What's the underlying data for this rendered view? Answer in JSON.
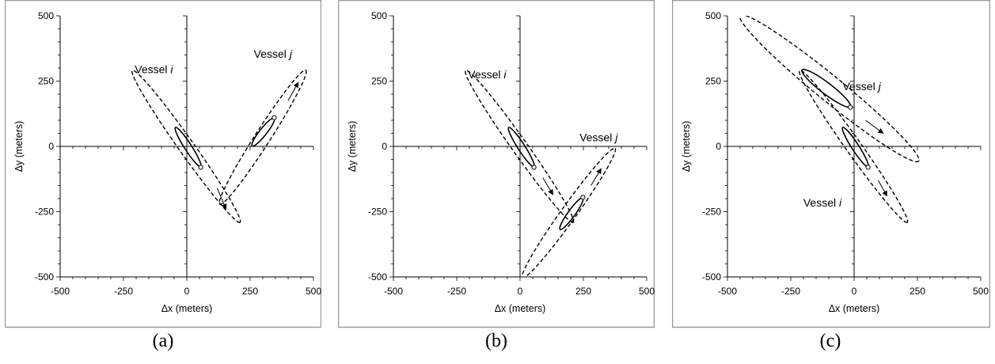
{
  "chart_data": [
    {
      "type": "scatter",
      "panel_label": "(a)",
      "xlabel": "Δx (meters)",
      "ylabel": "Δy (meters)",
      "xlim": [
        -500,
        500
      ],
      "ylim": [
        -500,
        500
      ],
      "xticks": [
        -500,
        -250,
        0,
        250,
        500
      ],
      "yticks": [
        500,
        250,
        0,
        -250,
        -500
      ],
      "grid": false,
      "vessels": [
        {
          "name": "Vessel i",
          "label_x": -130,
          "label_y": 280,
          "position": [
            55,
            -80
          ],
          "solid_ellipse": {
            "end1": [
              -45,
              75
            ],
            "end2": [
              55,
              -80
            ],
            "half_width": 14
          },
          "dashed_ellipse": {
            "end1": [
              -215,
              300
            ],
            "end2": [
              210,
              -300
            ],
            "half_width": 30
          },
          "arrow": {
            "from": [
              120,
              -160
            ],
            "to": [
              155,
              -240
            ]
          }
        },
        {
          "name": "Vessel j",
          "label_x": 340,
          "label_y": 340,
          "position": [
            345,
            110
          ],
          "solid_ellipse": {
            "end1": [
              258,
              0
            ],
            "end2": [
              345,
              110
            ],
            "half_width": 14
          },
          "dashed_ellipse": {
            "end1": [
              130,
              -230
            ],
            "end2": [
              470,
              300
            ],
            "half_width": 30
          },
          "arrow": {
            "from": [
              400,
              175
            ],
            "to": [
              440,
              245
            ]
          }
        }
      ]
    },
    {
      "type": "scatter",
      "panel_label": "(b)",
      "xlabel": "Δx (meters)",
      "ylabel": "Δy (meters)",
      "xlim": [
        -500,
        500
      ],
      "ylim": [
        -500,
        500
      ],
      "xticks": [
        -500,
        -250,
        0,
        250,
        500
      ],
      "yticks": [
        500,
        250,
        0,
        -250,
        -500
      ],
      "grid": false,
      "vessels": [
        {
          "name": "Vessel i",
          "label_x": -130,
          "label_y": 260,
          "position": [
            55,
            -80
          ],
          "solid_ellipse": {
            "end1": [
              -45,
              75
            ],
            "end2": [
              55,
              -80
            ],
            "half_width": 14
          },
          "dashed_ellipse": {
            "end1": [
              -215,
              300
            ],
            "end2": [
              210,
              -300
            ],
            "half_width": 30
          },
          "arrow": {
            "from": [
              90,
              -120
            ],
            "to": [
              130,
              -185
            ]
          }
        },
        {
          "name": "Vessel j",
          "label_x": 310,
          "label_y": 20,
          "position": [
            248,
            -195
          ],
          "solid_ellipse": {
            "end1": [
              158,
              -320
            ],
            "end2": [
              248,
              -195
            ],
            "half_width": 14
          },
          "dashed_ellipse": {
            "end1": [
              10,
              -510
            ],
            "end2": [
              375,
              0
            ],
            "half_width": 30
          },
          "arrow": {
            "from": [
              280,
              -150
            ],
            "to": [
              320,
              -85
            ]
          }
        }
      ]
    },
    {
      "type": "scatter",
      "panel_label": "(c)",
      "xlabel": "Δx (meters)",
      "ylabel": "Δy (meters)",
      "xlim": [
        -500,
        500
      ],
      "ylim": [
        -500,
        500
      ],
      "xticks": [
        -500,
        -250,
        0,
        250,
        500
      ],
      "yticks": [
        500,
        250,
        0,
        -250,
        -500
      ],
      "grid": false,
      "vessels": [
        {
          "name": "Vessel j",
          "label_x": 30,
          "label_y": 215,
          "position": [
            -15,
            150
          ],
          "solid_ellipse": {
            "end1": [
              -205,
              295
            ],
            "end2": [
              -15,
              150
            ],
            "half_width": 22
          },
          "dashed_ellipse": {
            "end1": [
              -450,
              510
            ],
            "end2": [
              255,
              -65
            ],
            "half_width": 50
          },
          "arrow": {
            "from": [
              45,
              100
            ],
            "to": [
              115,
              50
            ]
          }
        },
        {
          "name": "Vessel i",
          "label_x": -125,
          "label_y": -230,
          "position": [
            55,
            -80
          ],
          "solid_ellipse": {
            "end1": [
              -45,
              75
            ],
            "end2": [
              55,
              -80
            ],
            "half_width": 14
          },
          "dashed_ellipse": {
            "end1": [
              -215,
              300
            ],
            "end2": [
              210,
              -300
            ],
            "half_width": 30
          },
          "arrow": {
            "from": [
              95,
              -130
            ],
            "to": [
              130,
              -190
            ]
          }
        }
      ]
    }
  ]
}
